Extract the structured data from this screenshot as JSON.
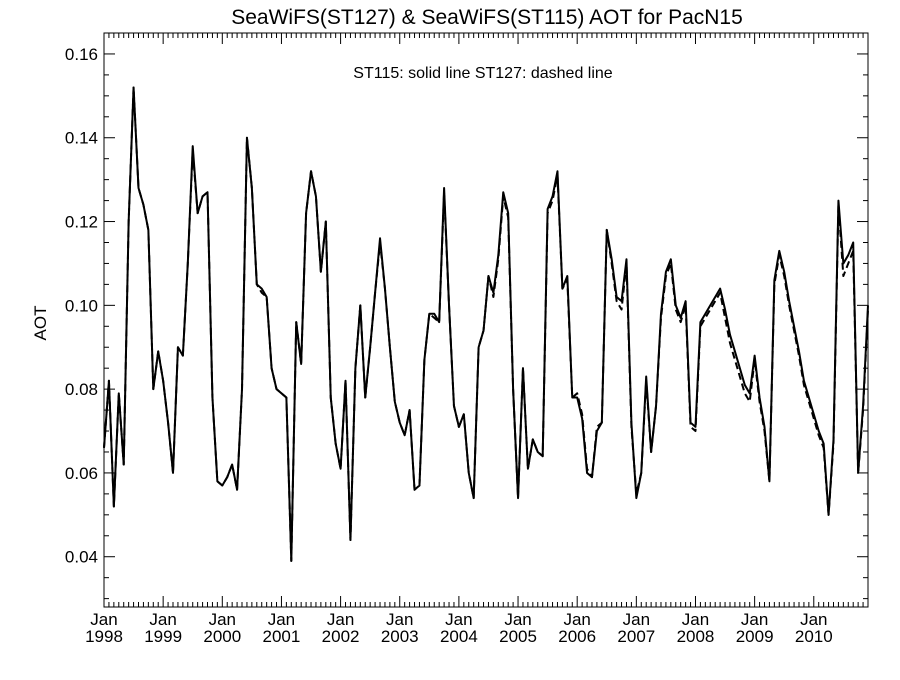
{
  "chart_data": {
    "type": "line",
    "title": "SeaWiFS(ST127) & SeaWiFS(ST115)  AOT for PacN15",
    "annotation": "ST115: solid line   ST127: dashed line",
    "xlabel": "",
    "ylabel": "AOT",
    "ylim": [
      0.028,
      0.165
    ],
    "xlim": [
      "1998-01",
      "2010-12"
    ],
    "yticks": [
      "0.04",
      "0.06",
      "0.08",
      "0.10",
      "0.12",
      "0.14",
      "0.16"
    ],
    "xticks": [
      {
        "month": "Jan",
        "year": "1998"
      },
      {
        "month": "Jan",
        "year": "1999"
      },
      {
        "month": "Jan",
        "year": "2000"
      },
      {
        "month": "Jan",
        "year": "2001"
      },
      {
        "month": "Jan",
        "year": "2002"
      },
      {
        "month": "Jan",
        "year": "2003"
      },
      {
        "month": "Jan",
        "year": "2004"
      },
      {
        "month": "Jan",
        "year": "2005"
      },
      {
        "month": "Jan",
        "year": "2006"
      },
      {
        "month": "Jan",
        "year": "2007"
      },
      {
        "month": "Jan",
        "year": "2008"
      },
      {
        "month": "Jan",
        "year": "2009"
      },
      {
        "month": "Jan",
        "year": "2010"
      }
    ],
    "grid": false,
    "months": [
      "1998-01",
      "1998-02",
      "1998-03",
      "1998-04",
      "1998-05",
      "1998-06",
      "1998-07",
      "1998-08",
      "1998-09",
      "1998-10",
      "1998-11",
      "1998-12",
      "1999-01",
      "1999-02",
      "1999-03",
      "1999-04",
      "1999-05",
      "1999-06",
      "1999-07",
      "1999-08",
      "1999-09",
      "1999-10",
      "1999-11",
      "1999-12",
      "2000-01",
      "2000-02",
      "2000-03",
      "2000-04",
      "2000-05",
      "2000-06",
      "2000-07",
      "2000-08",
      "2000-09",
      "2000-10",
      "2000-11",
      "2000-12",
      "2001-01",
      "2001-02",
      "2001-03",
      "2001-04",
      "2001-05",
      "2001-06",
      "2001-07",
      "2001-08",
      "2001-09",
      "2001-10",
      "2001-11",
      "2001-12",
      "2002-01",
      "2002-02",
      "2002-03",
      "2002-04",
      "2002-05",
      "2002-06",
      "2002-07",
      "2002-08",
      "2002-09",
      "2002-10",
      "2002-11",
      "2002-12",
      "2003-01",
      "2003-02",
      "2003-03",
      "2003-04",
      "2003-05",
      "2003-06",
      "2003-07",
      "2003-08",
      "2003-09",
      "2003-10",
      "2003-11",
      "2003-12",
      "2004-01",
      "2004-02",
      "2004-03",
      "2004-04",
      "2004-05",
      "2004-06",
      "2004-07",
      "2004-08",
      "2004-09",
      "2004-10",
      "2004-11",
      "2004-12",
      "2005-01",
      "2005-02",
      "2005-03",
      "2005-04",
      "2005-05",
      "2005-06",
      "2005-07",
      "2005-08",
      "2005-09",
      "2005-10",
      "2005-11",
      "2005-12",
      "2006-01",
      "2006-02",
      "2006-03",
      "2006-04",
      "2006-05",
      "2006-06",
      "2006-07",
      "2006-08",
      "2006-09",
      "2006-10",
      "2006-11",
      "2006-12",
      "2007-01",
      "2007-02",
      "2007-03",
      "2007-04",
      "2007-05",
      "2007-06",
      "2007-07",
      "2007-08",
      "2007-09",
      "2007-10",
      "2007-11",
      "2007-12",
      "2008-01",
      "2008-02",
      "2008-03",
      "2008-04",
      "2008-05",
      "2008-06",
      "2008-07",
      "2008-08",
      "2008-09",
      "2008-10",
      "2008-11",
      "2008-12",
      "2009-01",
      "2009-02",
      "2009-03",
      "2009-04",
      "2009-05",
      "2009-06",
      "2009-07",
      "2009-08",
      "2009-09",
      "2009-10",
      "2009-11",
      "2009-12",
      "2010-01",
      "2010-02",
      "2010-03",
      "2010-04",
      "2010-05",
      "2010-06",
      "2010-07",
      "2010-08",
      "2010-09",
      "2010-10",
      "2010-11",
      "2010-12"
    ],
    "series": [
      {
        "name": "ST115",
        "style": "solid",
        "color": "#000000",
        "values": [
          0.066,
          0.082,
          0.052,
          0.079,
          0.062,
          0.12,
          0.152,
          0.128,
          0.124,
          0.118,
          0.08,
          0.089,
          0.082,
          0.072,
          0.06,
          0.09,
          0.088,
          0.11,
          0.138,
          0.122,
          0.126,
          0.127,
          0.078,
          0.058,
          0.057,
          0.059,
          0.062,
          0.056,
          0.08,
          0.14,
          0.128,
          0.105,
          0.104,
          0.102,
          0.085,
          0.08,
          0.079,
          0.078,
          0.039,
          0.096,
          0.086,
          0.122,
          0.132,
          0.126,
          0.108,
          0.12,
          0.078,
          0.067,
          0.061,
          0.082,
          0.044,
          0.085,
          0.1,
          0.078,
          0.09,
          0.103,
          0.116,
          0.104,
          0.09,
          0.077,
          0.072,
          0.069,
          0.075,
          0.056,
          0.057,
          0.087,
          0.098,
          0.098,
          0.096,
          0.128,
          0.1,
          0.076,
          0.071,
          0.074,
          0.06,
          0.054,
          0.09,
          0.094,
          0.107,
          0.103,
          0.112,
          0.127,
          0.122,
          0.08,
          0.054,
          0.085,
          0.061,
          0.068,
          0.065,
          0.064,
          0.123,
          0.126,
          0.132,
          0.104,
          0.107,
          0.078,
          0.078,
          0.073,
          0.06,
          0.059,
          0.07,
          0.072,
          0.118,
          0.111,
          0.102,
          0.101,
          0.111,
          0.072,
          0.054,
          0.06,
          0.083,
          0.065,
          0.076,
          0.098,
          0.108,
          0.111,
          0.1,
          0.097,
          0.101,
          0.072,
          0.071,
          0.096,
          0.098,
          0.1,
          0.102,
          0.104,
          0.099,
          0.093,
          0.089,
          0.085,
          0.081,
          0.079,
          0.088,
          0.078,
          0.071,
          0.058,
          0.106,
          0.113,
          0.108,
          0.101,
          0.095,
          0.089,
          0.082,
          0.078,
          0.074,
          0.07,
          0.067,
          0.05,
          0.068,
          0.125,
          0.11,
          0.112,
          0.115,
          0.06,
          0.076,
          0.1
        ]
      },
      {
        "name": "ST127",
        "style": "dashed",
        "color": "#000000",
        "values": [
          0.066,
          0.082,
          0.052,
          0.079,
          0.062,
          0.12,
          0.152,
          0.128,
          0.124,
          0.118,
          0.08,
          0.089,
          0.082,
          0.072,
          0.06,
          0.09,
          0.088,
          0.11,
          0.137,
          0.122,
          0.126,
          0.127,
          0.078,
          0.058,
          0.057,
          0.059,
          0.062,
          0.056,
          0.08,
          0.14,
          0.128,
          0.105,
          0.103,
          0.102,
          0.085,
          0.08,
          0.079,
          0.078,
          0.039,
          0.096,
          0.086,
          0.122,
          0.132,
          0.126,
          0.108,
          0.12,
          0.078,
          0.067,
          0.061,
          0.082,
          0.044,
          0.085,
          0.1,
          0.078,
          0.09,
          0.103,
          0.115,
          0.104,
          0.09,
          0.077,
          0.072,
          0.069,
          0.075,
          0.056,
          0.057,
          0.087,
          0.098,
          0.097,
          0.096,
          0.127,
          0.1,
          0.076,
          0.071,
          0.074,
          0.06,
          0.054,
          0.09,
          0.094,
          0.107,
          0.102,
          0.111,
          0.126,
          0.121,
          0.08,
          0.054,
          0.085,
          0.061,
          0.068,
          0.065,
          0.064,
          0.122,
          0.125,
          0.131,
          0.104,
          0.106,
          0.078,
          0.079,
          0.074,
          0.061,
          0.059,
          0.071,
          0.072,
          0.118,
          0.11,
          0.101,
          0.099,
          0.11,
          0.071,
          0.055,
          0.06,
          0.082,
          0.065,
          0.076,
          0.097,
          0.107,
          0.11,
          0.099,
          0.096,
          0.1,
          0.071,
          0.07,
          0.095,
          0.097,
          0.099,
          0.101,
          0.103,
          0.097,
          0.091,
          0.087,
          0.083,
          0.079,
          0.077,
          0.087,
          0.077,
          0.07,
          0.058,
          0.105,
          0.112,
          0.107,
          0.1,
          0.094,
          0.088,
          0.081,
          0.077,
          0.073,
          0.069,
          0.066,
          0.05,
          0.067,
          0.124,
          0.107,
          0.11,
          0.113,
          0.06,
          0.075,
          0.099
        ]
      }
    ]
  }
}
